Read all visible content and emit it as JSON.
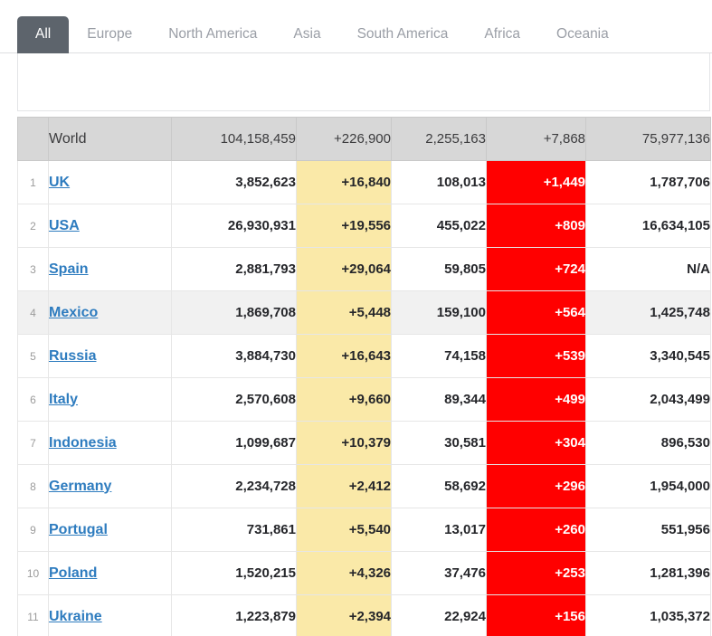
{
  "tabs": {
    "items": [
      {
        "label": "All",
        "active": true
      },
      {
        "label": "Europe",
        "active": false
      },
      {
        "label": "North America",
        "active": false
      },
      {
        "label": "Asia",
        "active": false
      },
      {
        "label": "South America",
        "active": false
      },
      {
        "label": "Africa",
        "active": false
      },
      {
        "label": "Oceania",
        "active": false
      }
    ]
  },
  "table": {
    "summary_row": {
      "label": "World",
      "total_cases": "104,158,459",
      "new_cases": "+226,900",
      "total_deaths": "2,255,163",
      "new_deaths": "+7,868",
      "total_recovered": "75,977,136"
    },
    "rows": [
      {
        "rank": "1",
        "country": "UK",
        "total_cases": "3,852,623",
        "new_cases": "+16,840",
        "total_deaths": "108,013",
        "new_deaths": "+1,449",
        "total_recovered": "1,787,706",
        "highlighted": false
      },
      {
        "rank": "2",
        "country": "USA",
        "total_cases": "26,930,931",
        "new_cases": "+19,556",
        "total_deaths": "455,022",
        "new_deaths": "+809",
        "total_recovered": "16,634,105",
        "highlighted": false
      },
      {
        "rank": "3",
        "country": "Spain",
        "total_cases": "2,881,793",
        "new_cases": "+29,064",
        "total_deaths": "59,805",
        "new_deaths": "+724",
        "total_recovered": "N/A",
        "highlighted": false
      },
      {
        "rank": "4",
        "country": "Mexico",
        "total_cases": "1,869,708",
        "new_cases": "+5,448",
        "total_deaths": "159,100",
        "new_deaths": "+564",
        "total_recovered": "1,425,748",
        "highlighted": true
      },
      {
        "rank": "5",
        "country": "Russia",
        "total_cases": "3,884,730",
        "new_cases": "+16,643",
        "total_deaths": "74,158",
        "new_deaths": "+539",
        "total_recovered": "3,340,545",
        "highlighted": false
      },
      {
        "rank": "6",
        "country": "Italy",
        "total_cases": "2,570,608",
        "new_cases": "+9,660",
        "total_deaths": "89,344",
        "new_deaths": "+499",
        "total_recovered": "2,043,499",
        "highlighted": false
      },
      {
        "rank": "7",
        "country": "Indonesia",
        "total_cases": "1,099,687",
        "new_cases": "+10,379",
        "total_deaths": "30,581",
        "new_deaths": "+304",
        "total_recovered": "896,530",
        "highlighted": false
      },
      {
        "rank": "8",
        "country": "Germany",
        "total_cases": "2,234,728",
        "new_cases": "+2,412",
        "total_deaths": "58,692",
        "new_deaths": "+296",
        "total_recovered": "1,954,000",
        "highlighted": false
      },
      {
        "rank": "9",
        "country": "Portugal",
        "total_cases": "731,861",
        "new_cases": "+5,540",
        "total_deaths": "13,017",
        "new_deaths": "+260",
        "total_recovered": "551,956",
        "highlighted": false
      },
      {
        "rank": "10",
        "country": "Poland",
        "total_cases": "1,520,215",
        "new_cases": "+4,326",
        "total_deaths": "37,476",
        "new_deaths": "+253",
        "total_recovered": "1,281,396",
        "highlighted": false
      },
      {
        "rank": "11",
        "country": "Ukraine",
        "total_cases": "1,223,879",
        "new_cases": "+2,394",
        "total_deaths": "22,924",
        "new_deaths": "+156",
        "total_recovered": "1,035,372",
        "highlighted": false
      }
    ]
  },
  "colors": {
    "active_tab_bg": "#5d646c",
    "inactive_tab_text": "#9a9ea6",
    "summary_row_bg": "#d7d7d7",
    "new_cases_bg": "#fae9a8",
    "new_deaths_bg": "#ff0000",
    "country_link": "#2e7cbf",
    "highlight_row_bg": "#f1f1f1"
  }
}
